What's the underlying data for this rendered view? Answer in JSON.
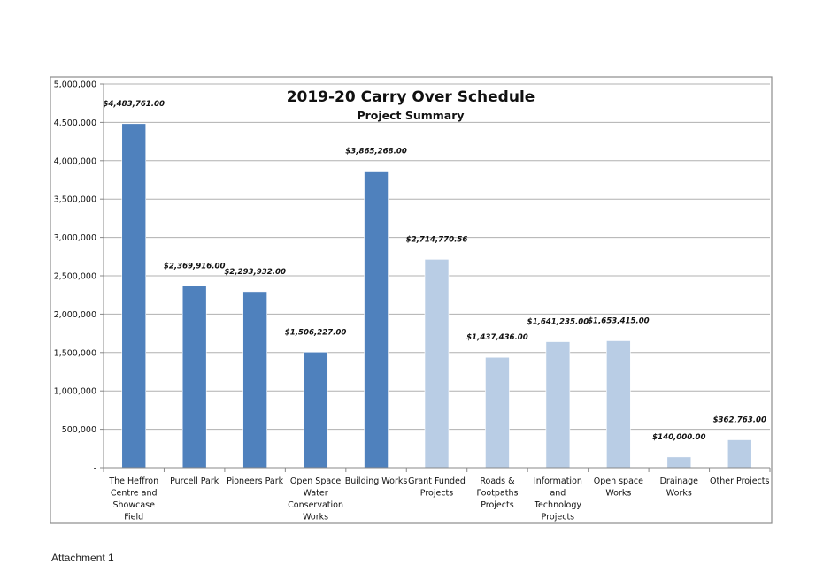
{
  "chart_data": {
    "type": "bar",
    "title": "2019-20 Carry Over Schedule",
    "subtitle": "Project Summary",
    "xlabel": "",
    "ylabel": "",
    "ylim": [
      0,
      5000000
    ],
    "yticks": [
      0,
      500000,
      1000000,
      1500000,
      2000000,
      2500000,
      3000000,
      3500000,
      4000000,
      4500000,
      5000000
    ],
    "ytick_labels": [
      "-",
      "500,000",
      "1,000,000",
      "1,500,000",
      "2,000,000",
      "2,500,000",
      "3,000,000",
      "3,500,000",
      "4,000,000",
      "4,500,000",
      "5,000,000"
    ],
    "grid": true,
    "legend": "none",
    "categories": [
      [
        "The Heffron",
        "Centre and",
        "Showcase",
        "Field"
      ],
      [
        "Purcell Park"
      ],
      [
        "Pioneers Park"
      ],
      [
        "Open Space",
        "Water",
        "Conservation",
        "Works"
      ],
      [
        "Building Works"
      ],
      [
        "Grant Funded",
        "Projects"
      ],
      [
        "Roads &",
        "Footpaths",
        "Projects"
      ],
      [
        "Information",
        "and",
        "Technology",
        "Projects"
      ],
      [
        "Open space",
        "Works"
      ],
      [
        "Drainage",
        "Works"
      ],
      [
        "Other Projects"
      ]
    ],
    "values": [
      4483761.0,
      2369916.0,
      2293932.0,
      1506227.0,
      3865268.0,
      2714770.56,
      1437436.0,
      1641235.0,
      1653415.0,
      140000.0,
      362763.0
    ],
    "data_labels": [
      "$4,483,761.00",
      "$2,369,916.00",
      "$2,293,932.00",
      "$1,506,227.00",
      "$3,865,268.00",
      "$2,714,770.56",
      "$1,437,436.00",
      "$1,641,235.00",
      "$1,653,415.00",
      "$140,000.00",
      "$362,763.00"
    ],
    "bar_colors": [
      "#4f81bd",
      "#4f81bd",
      "#4f81bd",
      "#4f81bd",
      "#4f81bd",
      "#b9cde5",
      "#b9cde5",
      "#b9cde5",
      "#b9cde5",
      "#b9cde5",
      "#b9cde5"
    ],
    "colors": {
      "grid": "#b0b0b0",
      "axis": "#888888",
      "frame": "#8c8c8c",
      "text": "#111111"
    }
  },
  "footer": {
    "attachment": "Attachment 1"
  }
}
